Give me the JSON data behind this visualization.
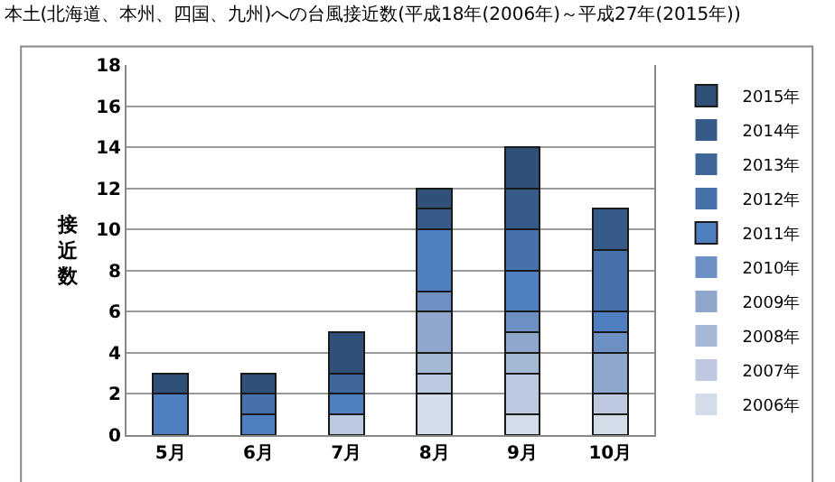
{
  "chart_data": {
    "type": "bar",
    "stacked": true,
    "title": "本土(北海道、本州、四国、九州)への台風接近数(平成18年(2006年)～平成27年(2015年))",
    "ylabel": "接近数",
    "categories": [
      "5月",
      "6月",
      "7月",
      "8月",
      "9月",
      "10月"
    ],
    "series": [
      {
        "name": "2006年",
        "color": "#d3dce9",
        "values": [
          0,
          0,
          0,
          2,
          1,
          1
        ]
      },
      {
        "name": "2007年",
        "color": "#bcc9df",
        "values": [
          0,
          0,
          1,
          1,
          2,
          1
        ]
      },
      {
        "name": "2008年",
        "color": "#a5b8d6",
        "values": [
          0,
          0,
          0,
          1,
          1,
          0
        ]
      },
      {
        "name": "2009年",
        "color": "#8ea6cc",
        "values": [
          0,
          0,
          0,
          2,
          1,
          2
        ]
      },
      {
        "name": "2010年",
        "color": "#6d90c4",
        "values": [
          0,
          0,
          0,
          1,
          1,
          1
        ]
      },
      {
        "name": "2011年",
        "color": "#4f7fc0",
        "values": [
          2,
          1,
          1,
          3,
          2,
          1
        ]
      },
      {
        "name": "2012年",
        "color": "#4671aa",
        "values": [
          0,
          1,
          0,
          0,
          2,
          3
        ]
      },
      {
        "name": "2013年",
        "color": "#3f6699",
        "values": [
          0,
          0,
          1,
          0,
          0,
          0
        ]
      },
      {
        "name": "2014年",
        "color": "#375b88",
        "values": [
          0,
          0,
          0,
          1,
          2,
          2
        ]
      },
      {
        "name": "2015年",
        "color": "#2f5078",
        "values": [
          1,
          1,
          2,
          1,
          2,
          0
        ]
      }
    ],
    "ylim": [
      0,
      18
    ],
    "yticks": [
      0,
      2,
      4,
      6,
      8,
      10,
      12,
      14,
      16,
      18
    ],
    "grid": "y",
    "legend": "right"
  }
}
